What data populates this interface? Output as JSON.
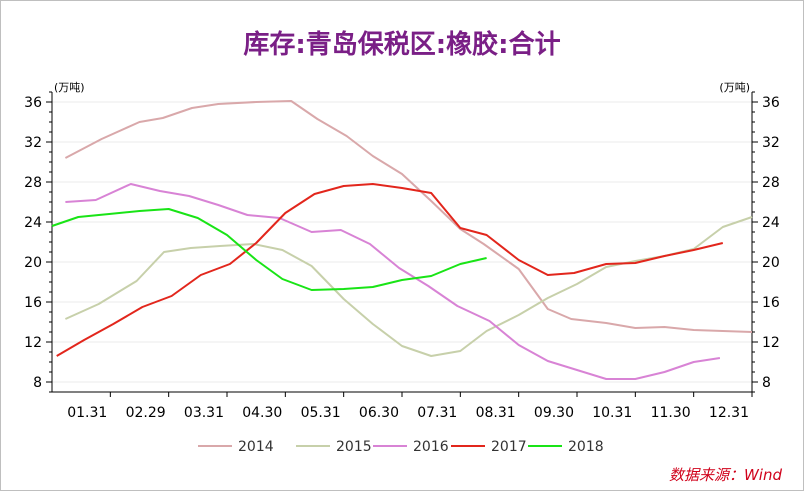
{
  "title": "库存:青岛保税区:橡胶:合计",
  "source": "数据来源：Wind",
  "chart_data": {
    "type": "line",
    "title": "库存:青岛保税区:橡胶:合计",
    "y_unit_left": "(万吨)",
    "y_unit_right": "(万吨)",
    "ylim": [
      7,
      37
    ],
    "yticks": [
      8,
      12,
      16,
      20,
      24,
      28,
      32,
      36
    ],
    "xlim": [
      0,
      12
    ],
    "x_ticks": [
      {
        "label": "01.31",
        "x": 1
      },
      {
        "label": "02.29",
        "x": 2
      },
      {
        "label": "03.31",
        "x": 3
      },
      {
        "label": "04.30",
        "x": 4
      },
      {
        "label": "05.31",
        "x": 5
      },
      {
        "label": "06.30",
        "x": 6
      },
      {
        "label": "07.31",
        "x": 7
      },
      {
        "label": "08.31",
        "x": 8
      },
      {
        "label": "09.30",
        "x": 9
      },
      {
        "label": "10.31",
        "x": 10
      },
      {
        "label": "11.30",
        "x": 11
      },
      {
        "label": "12.31",
        "x": 12
      }
    ],
    "grid": true,
    "legend": "bottom",
    "series": [
      {
        "name": "2014",
        "color": "#d9a8aa",
        "x": [
          0.23,
          0.85,
          1.5,
          1.9,
          2.4,
          2.85,
          3.5,
          4.1,
          4.55,
          5.05,
          5.5,
          6.0,
          6.5,
          7.0,
          7.4,
          8.0,
          8.5,
          8.9,
          9.5,
          10.0,
          10.5,
          11.0,
          11.5,
          12.0
        ],
        "y": [
          30.4,
          32.3,
          34.0,
          34.4,
          35.4,
          35.8,
          36.0,
          36.1,
          34.3,
          32.6,
          30.6,
          28.8,
          26.1,
          23.3,
          21.8,
          19.3,
          15.3,
          14.3,
          13.9,
          13.4,
          13.5,
          13.2,
          13.1,
          13.0
        ]
      },
      {
        "name": "2015",
        "color": "#c7d0aa",
        "x": [
          0.23,
          0.8,
          1.45,
          1.92,
          2.38,
          2.88,
          3.45,
          3.95,
          4.45,
          5.0,
          5.5,
          6.0,
          6.5,
          7.0,
          7.45,
          8.0,
          8.5,
          9.0,
          9.5,
          10.0,
          10.5,
          11.0,
          11.5,
          12.0
        ],
        "y": [
          14.3,
          15.8,
          18.1,
          21.0,
          21.4,
          21.6,
          21.8,
          21.2,
          19.6,
          16.3,
          13.8,
          11.6,
          10.6,
          11.1,
          13.1,
          14.7,
          16.4,
          17.8,
          19.5,
          20.1,
          20.6,
          21.3,
          23.5,
          24.5
        ]
      },
      {
        "name": "2016",
        "color": "#d883d5",
        "x": [
          0.23,
          0.75,
          1.35,
          1.85,
          2.35,
          2.85,
          3.35,
          3.9,
          4.45,
          4.95,
          5.45,
          5.95,
          6.45,
          6.95,
          7.5,
          8.0,
          8.5,
          9.0,
          9.5,
          10.0,
          10.5,
          11.0,
          11.45
        ],
        "y": [
          26.0,
          26.2,
          27.8,
          27.1,
          26.6,
          25.7,
          24.7,
          24.4,
          23.0,
          23.2,
          21.8,
          19.4,
          17.6,
          15.6,
          14.1,
          11.7,
          10.1,
          9.2,
          8.3,
          8.3,
          9.0,
          10.0,
          10.4
        ]
      },
      {
        "name": "2017",
        "color": "#e2261c",
        "x": [
          0.08,
          0.55,
          1.05,
          1.55,
          2.05,
          2.55,
          3.05,
          3.5,
          4.0,
          4.5,
          5.0,
          5.5,
          6.0,
          6.5,
          7.0,
          7.45,
          8.0,
          8.5,
          8.95,
          9.5,
          10.0,
          10.5,
          11.0,
          11.5
        ],
        "y": [
          10.6,
          12.2,
          13.8,
          15.5,
          16.6,
          18.7,
          19.8,
          21.9,
          24.9,
          26.8,
          27.6,
          27.8,
          27.4,
          26.9,
          23.4,
          22.7,
          20.2,
          18.7,
          18.9,
          19.8,
          19.9,
          20.6,
          21.2,
          21.9
        ]
      },
      {
        "name": "2018",
        "color": "#19e416",
        "x": [
          0.0,
          0.45,
          0.98,
          1.5,
          2.0,
          2.5,
          3.0,
          3.5,
          3.95,
          4.45,
          5.0,
          5.5,
          6.0,
          6.5,
          7.0,
          7.45
        ],
        "y": [
          23.6,
          24.5,
          24.8,
          25.1,
          25.3,
          24.4,
          22.7,
          20.2,
          18.3,
          17.2,
          17.3,
          17.5,
          18.2,
          18.6,
          19.8,
          20.4
        ]
      }
    ]
  }
}
